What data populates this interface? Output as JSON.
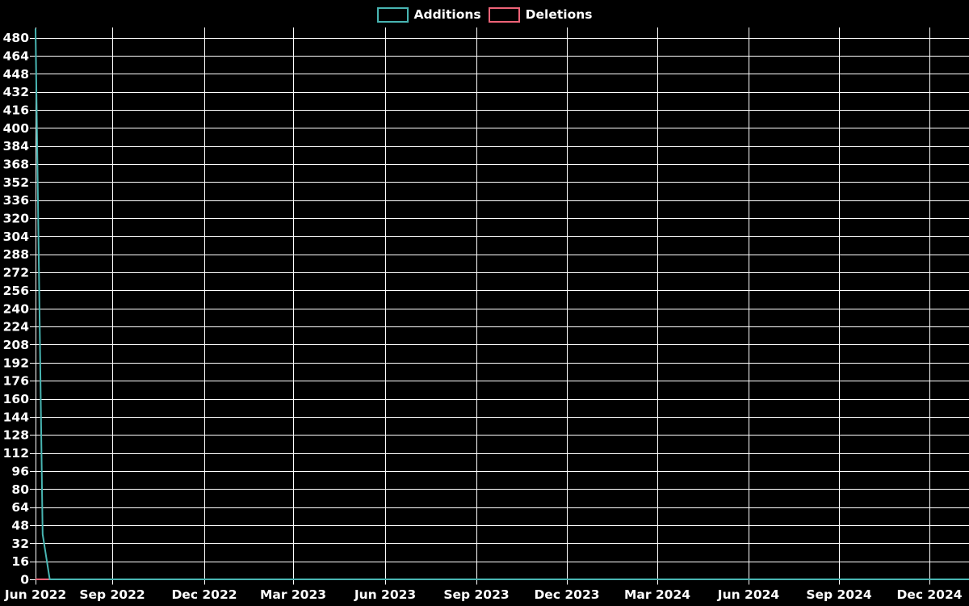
{
  "chart_data": {
    "type": "line",
    "title": "",
    "legend_position": "top-center",
    "grid": true,
    "colors": {
      "background": "#000000",
      "grid": "#ffffff",
      "text": "#ffffff",
      "additions": "#48b5b2",
      "deletions": "#ee6377"
    },
    "series": [
      {
        "name": "Additions",
        "color": "#48b5b2",
        "points": [
          [
            0,
            488
          ],
          [
            0.00761,
            40
          ],
          [
            0.01522,
            0
          ],
          [
            1,
            0
          ]
        ]
      },
      {
        "name": "Deletions",
        "color": "#ee6377",
        "points": [
          [
            0,
            0
          ],
          [
            1,
            0
          ]
        ]
      }
    ],
    "x_ticks": [
      {
        "label": "Jun 2022",
        "pos": 0
      },
      {
        "label": "Sep 2022",
        "pos": 0.08218
      },
      {
        "label": "Dec 2022",
        "pos": 0.1808
      },
      {
        "label": "Mar 2023",
        "pos": 0.27595
      },
      {
        "label": "Jun 2023",
        "pos": 0.37457
      },
      {
        "label": "Sep 2023",
        "pos": 0.47232
      },
      {
        "label": "Dec 2023",
        "pos": 0.5692
      },
      {
        "label": "Mar 2024",
        "pos": 0.66609
      },
      {
        "label": "Jun 2024",
        "pos": 0.76384
      },
      {
        "label": "Sep 2024",
        "pos": 0.86073
      },
      {
        "label": "Dec 2024",
        "pos": 0.95761
      }
    ],
    "y_ticks": [
      0,
      16,
      32,
      48,
      64,
      80,
      96,
      112,
      128,
      144,
      160,
      176,
      192,
      208,
      224,
      240,
      256,
      272,
      288,
      304,
      320,
      336,
      352,
      368,
      384,
      400,
      416,
      432,
      448,
      464,
      480
    ],
    "ylim": [
      0,
      489
    ],
    "xlim_frac": [
      0,
      1
    ]
  }
}
